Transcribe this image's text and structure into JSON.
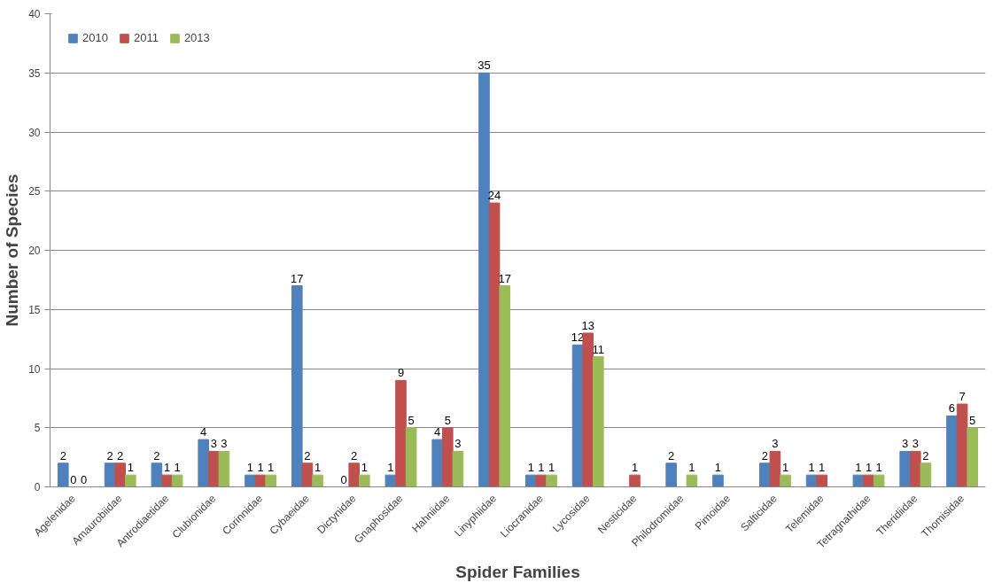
{
  "chart_data": {
    "type": "bar",
    "xlabel": "Spider Families",
    "ylabel": "Number of Species",
    "categories": [
      "Agelenidae",
      "Amaurobiidae",
      "Antrodiaetidae",
      "Clubionidae",
      "Corinnidae",
      "Cybaeidae",
      "Dictynidae",
      "Gnaphosidae",
      "Hahniidae",
      "Linyphiidae",
      "Liocranidae",
      "Lycosidae",
      "Nesticidae",
      "Philodromidae",
      "Pimoidae",
      "Salticidae",
      "Telemidae",
      "Tetragnathidae",
      "Theridiidae",
      "Thomisidae"
    ],
    "series": [
      {
        "name": "2010",
        "color": "#4f81bd",
        "values": [
          2,
          2,
          2,
          4,
          1,
          17,
          0,
          1,
          4,
          35,
          1,
          12,
          null,
          2,
          1,
          2,
          1,
          1,
          3,
          6
        ]
      },
      {
        "name": "2011",
        "color": "#c0504d",
        "values": [
          0,
          2,
          1,
          3,
          1,
          2,
          2,
          9,
          5,
          24,
          1,
          13,
          1,
          null,
          null,
          3,
          1,
          1,
          3,
          7
        ]
      },
      {
        "name": "2013",
        "color": "#9bbb59",
        "values": [
          0,
          1,
          1,
          3,
          1,
          1,
          1,
          5,
          3,
          17,
          1,
          11,
          null,
          1,
          null,
          1,
          null,
          1,
          2,
          5
        ]
      }
    ],
    "ylim": [
      0,
      40
    ],
    "yticks": [
      0,
      5,
      10,
      15,
      20,
      25,
      30,
      35,
      40
    ],
    "grid": "y",
    "legend": "top left",
    "data_labels": true
  }
}
